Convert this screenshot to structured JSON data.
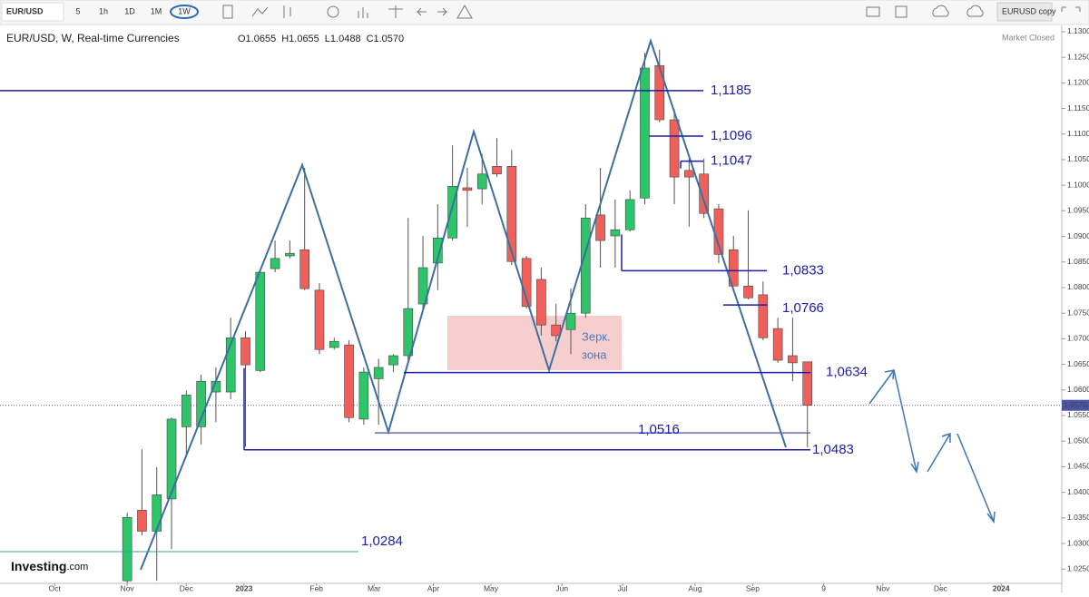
{
  "toolbar": {
    "symbol": "EUR/USD",
    "intervals": [
      "5",
      "1h",
      "1D",
      "1M",
      "1W"
    ],
    "layout": "EURUSD copy"
  },
  "chart_data": {
    "type": "candlestick",
    "title": "EUR/USD, W, Real-time Currencies",
    "ohlc_legend": [
      "O1.0655",
      "H1.0655",
      "L1.0488",
      "C1.0570"
    ],
    "status": "Market Closed",
    "brand": "Investing",
    "brand_suffix": ".com",
    "x": [
      0,
      1,
      2,
      3,
      4,
      5,
      6,
      7,
      8,
      9,
      10,
      11,
      12,
      13,
      14,
      15,
      16,
      17,
      18,
      19,
      20,
      21,
      22,
      23,
      24,
      25,
      26,
      27,
      28,
      29,
      30,
      31,
      32,
      33,
      34,
      35,
      36,
      37,
      38,
      39,
      40,
      41,
      42,
      43,
      44,
      45,
      46
    ],
    "open": [
      1.0227,
      1.0365,
      1.0324,
      1.0387,
      1.0528,
      1.0528,
      1.0596,
      1.0596,
      1.0702,
      1.0638,
      1.0837,
      1.0862,
      1.0874,
      1.0795,
      1.0683,
      1.0688,
      1.0543,
      1.0622,
      1.0649,
      1.0667,
      1.0768,
      1.0848,
      1.0897,
      1.0995,
      1.0993,
      1.1037,
      1.1037,
      1.0857,
      1.0816,
      1.0727,
      1.0718,
      1.075,
      1.0942,
      1.0901,
      1.0913,
      1.0975,
      1.1234,
      1.1128,
      1.1029,
      1.1022,
      1.0954,
      1.0874,
      1.0803,
      1.0786,
      1.072,
      1.0667,
      1.0655
    ],
    "high": [
      1.036,
      1.0484,
      1.0449,
      1.0546,
      1.0599,
      1.063,
      1.0644,
      1.0741,
      1.0715,
      1.0833,
      1.0892,
      1.0892,
      1.1034,
      1.0809,
      1.0702,
      1.0697,
      1.0644,
      1.0661,
      1.067,
      1.0936,
      1.0901,
      1.0963,
      1.1078,
      1.1034,
      1.1061,
      1.1092,
      1.1069,
      1.0862,
      1.0839,
      1.0768,
      1.0798,
      1.0963,
      1.1034,
      1.0972,
      1.099,
      1.1259,
      1.1265,
      1.1149,
      1.1052,
      1.1052,
      1.0963,
      1.0901,
      1.0951,
      1.0812,
      1.0741,
      1.0741,
      1.0655
    ],
    "low": [
      1.0222,
      1.0316,
      1.0227,
      1.0289,
      1.0475,
      1.0493,
      1.0537,
      1.0582,
      1.0489,
      1.0635,
      1.083,
      1.0857,
      1.0795,
      1.067,
      1.0679,
      1.0537,
      1.0532,
      1.0532,
      1.0635,
      1.0653,
      1.0759,
      1.0795,
      1.0892,
      1.0919,
      1.0963,
      1.1016,
      1.0844,
      1.0759,
      1.0706,
      1.0695,
      1.067,
      1.0741,
      1.0839,
      1.0839,
      1.091,
      1.0963,
      1.1123,
      1.0963,
      1.0919,
      1.0936,
      1.0848,
      1.0803,
      1.0777,
      1.0697,
      1.0653,
      1.0617,
      1.0488
    ],
    "close": [
      1.0351,
      1.0324,
      1.0395,
      1.0543,
      1.059,
      1.0617,
      1.0617,
      1.0702,
      1.0649,
      1.083,
      1.0857,
      1.0867,
      1.0798,
      1.0679,
      1.0695,
      1.0546,
      1.0635,
      1.0644,
      1.0667,
      1.0759,
      1.0839,
      1.0897,
      1.0998,
      1.099,
      1.1022,
      1.1022,
      1.0851,
      1.0763,
      1.0727,
      1.0706,
      1.075,
      1.0936,
      1.0892,
      1.0913,
      1.0972,
      1.1229,
      1.1128,
      1.1016,
      1.1016,
      1.0945,
      1.0865,
      1.0803,
      1.078,
      1.0702,
      1.0658,
      1.0653,
      1.057
    ],
    "up_color": "#2ec46a",
    "down_color": "#f0605a",
    "xlim": [
      -8.6,
      63.2
    ],
    "ylim": [
      1.0222,
      1.1362
    ],
    "xticks": [
      {
        "value": -4.9,
        "label": "Oct"
      },
      {
        "value": 0,
        "label": "Nov"
      },
      {
        "value": 4,
        "label": "Dec"
      },
      {
        "value": 7.9,
        "label": "2023"
      },
      {
        "value": 12.8,
        "label": "Feb"
      },
      {
        "value": 16.7,
        "label": "Mar"
      },
      {
        "value": 20.7,
        "label": "Apr"
      },
      {
        "value": 24.6,
        "label": "May"
      },
      {
        "value": 29.4,
        "label": "Jun"
      },
      {
        "value": 33.5,
        "label": "Jul"
      },
      {
        "value": 38.4,
        "label": "Aug"
      },
      {
        "value": 42.3,
        "label": "Sep"
      },
      {
        "value": 47.1,
        "label": "9"
      },
      {
        "value": 51.1,
        "label": "Nov"
      },
      {
        "value": 55,
        "label": "Dec"
      },
      {
        "value": 59.1,
        "label": "2024"
      }
    ],
    "yticks": [
      {
        "value": 1.025,
        "label": "1.0250"
      },
      {
        "value": 1.03,
        "label": "1.0300"
      },
      {
        "value": 1.035,
        "label": "1.0350"
      },
      {
        "value": 1.04,
        "label": "1.0400"
      },
      {
        "value": 1.045,
        "label": "1.0450"
      },
      {
        "value": 1.05,
        "label": "1.0500"
      },
      {
        "value": 1.055,
        "label": "1.0550"
      },
      {
        "value": 1.06,
        "label": "1.0600"
      },
      {
        "value": 1.065,
        "label": "1.0650"
      },
      {
        "value": 1.07,
        "label": "1.0700"
      },
      {
        "value": 1.075,
        "label": "1.0750"
      },
      {
        "value": 1.08,
        "label": "1.0800"
      },
      {
        "value": 1.085,
        "label": "1.0850"
      },
      {
        "value": 1.09,
        "label": "1.0900"
      },
      {
        "value": 1.095,
        "label": "1.0950"
      },
      {
        "value": 1.1,
        "label": "1.1000"
      },
      {
        "value": 1.105,
        "label": "1.1050"
      },
      {
        "value": 1.11,
        "label": "1.1100"
      },
      {
        "value": 1.115,
        "label": "1.1150"
      },
      {
        "value": 1.12,
        "label": "1.1200"
      },
      {
        "value": 1.125,
        "label": "1.1250"
      },
      {
        "value": 1.13,
        "label": "1.1300"
      }
    ],
    "last_price": {
      "value": 1.057,
      "label": "1.0570"
    },
    "levels": [
      {
        "value": 1.1185,
        "label": "1,1185"
      },
      {
        "value": 1.1096,
        "label": "1,1096"
      },
      {
        "value": 1.1047,
        "label": "1,1047"
      },
      {
        "value": 1.0833,
        "label": "1,0833"
      },
      {
        "value": 1.0766,
        "label": "1,0766"
      },
      {
        "value": 1.0634,
        "label": "1,0634"
      },
      {
        "value": 1.0516,
        "label": "1,0516"
      },
      {
        "value": 1.0483,
        "label": "1,0483"
      },
      {
        "value": 1.0284,
        "label": "1,0284"
      }
    ],
    "zone_label": [
      "Зерк.",
      "зона"
    ]
  }
}
